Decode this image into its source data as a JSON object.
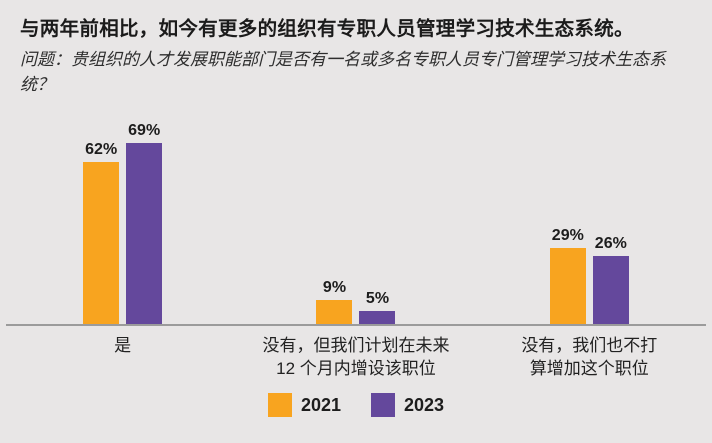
{
  "header": {
    "title": "与两年前相比，如今有更多的组织有专职人员管理学习技术生态系统。",
    "subtitle": "问题：贵组织的人才发展职能部门是否有一名或多名专职人员专门管理学习技术生态系统？"
  },
  "colors": {
    "background": "#e8e6e6",
    "bar_2021": "#f8a41f",
    "bar_2023": "#64489c",
    "axis_line": "#9b9b9b",
    "text": "#1d1d1d"
  },
  "chart_data": {
    "type": "bar",
    "title": "与两年前相比，如今有更多的组织有专职人员管理学习技术生态系统。",
    "subtitle": "问题：贵组织的人才发展职能部门是否有一名或多名专职人员专门管理学习技术生态系统？",
    "categories": [
      [
        "是"
      ],
      [
        "没有，但我们计划在未来",
        "12 个月内增设该职位"
      ],
      [
        "没有，我们也不打",
        "算增加这个职位"
      ]
    ],
    "series": [
      {
        "name": "2021",
        "color": "#f8a41f",
        "values": [
          62,
          9,
          29
        ]
      },
      {
        "name": "2023",
        "color": "#64489c",
        "values": [
          69,
          5,
          26
        ]
      }
    ],
    "value_suffix": "%",
    "xlabel": "",
    "ylabel": "",
    "ylim": [
      0,
      100
    ],
    "grid": false,
    "axis_ticks": "none",
    "data_labels": true,
    "legend_position": "bottom-center"
  }
}
